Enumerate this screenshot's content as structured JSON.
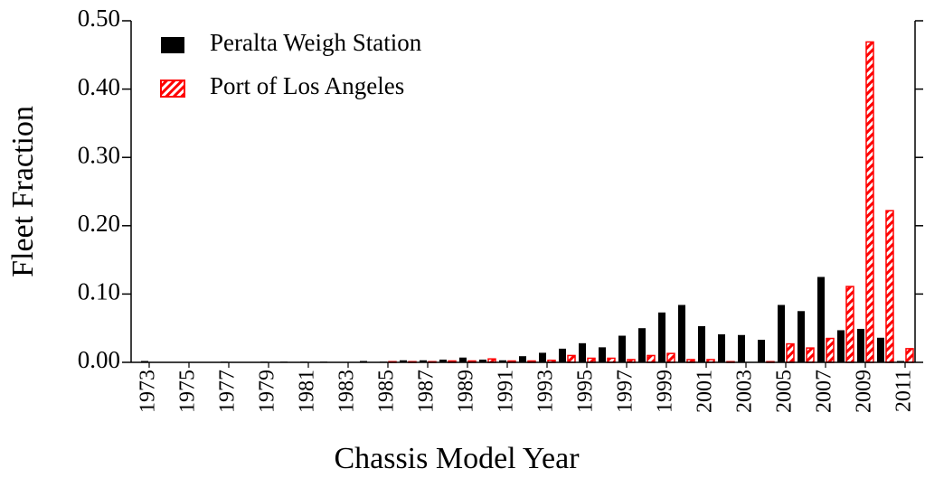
{
  "chart_data": {
    "type": "bar",
    "xlabel": "Chassis Model Year",
    "ylabel": "Fleet Fraction",
    "categories": [
      "1973",
      null,
      "1975",
      null,
      "1977",
      null,
      "1979",
      null,
      "1981",
      null,
      "1983",
      null,
      "1985",
      null,
      "1987",
      null,
      "1989",
      null,
      "1991",
      null,
      "1993",
      null,
      "1995",
      null,
      "1997",
      null,
      "1999",
      null,
      "2001",
      null,
      "2003",
      null,
      "2005",
      null,
      "2007",
      null,
      "2009",
      null,
      "2011"
    ],
    "series": [
      {
        "name": "Peralta Weigh Station",
        "color": "#000000",
        "hatch": false,
        "values": [
          0.002,
          0,
          0,
          0,
          0.001,
          0,
          0.001,
          0.001,
          0.001,
          0.001,
          0,
          0.002,
          0.001,
          0.003,
          0.003,
          0.004,
          0.007,
          0.004,
          0.003,
          0.009,
          0.014,
          0.02,
          0.028,
          0.022,
          0.039,
          0.05,
          0.073,
          0.084,
          0.053,
          0.041,
          0.04,
          0.033,
          0.084,
          0.075,
          0.125,
          0.047,
          0.049,
          0.036,
          0.002
        ]
      },
      {
        "name": "Port of Los Angeles",
        "color": "#ff0000",
        "hatch": true,
        "values": [
          0,
          0,
          0,
          0,
          0,
          0,
          0,
          0,
          0,
          0,
          0,
          0,
          0.001,
          0.001,
          0.001,
          0.002,
          0.002,
          0.005,
          0.002,
          0.002,
          0.003,
          0.01,
          0.006,
          0.006,
          0.004,
          0.01,
          0.013,
          0.004,
          0.004,
          0.001,
          0,
          0.001,
          0.027,
          0.021,
          0.035,
          0.111,
          0.469,
          0.222,
          0.02
        ]
      }
    ],
    "ylim": [
      0,
      0.5
    ],
    "yticks": [
      {
        "value": 0,
        "label": "0.00"
      },
      {
        "value": 0.1,
        "label": "0.10"
      },
      {
        "value": 0.2,
        "label": "0.20"
      },
      {
        "value": 0.3,
        "label": "0.30"
      },
      {
        "value": 0.4,
        "label": "0.40"
      },
      {
        "value": 0.5,
        "label": "0.50"
      }
    ],
    "legend": "upper left",
    "grid": false
  }
}
